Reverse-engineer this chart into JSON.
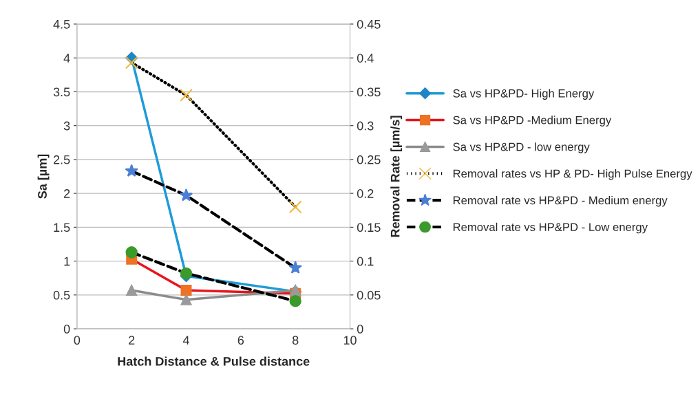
{
  "chart_data": {
    "type": "line",
    "xlabel": "Hatch Distance & Pulse distance",
    "ylabel": "Sa [µm]",
    "y2label": "Removal Rate [µm/s]",
    "x": [
      2,
      4,
      8
    ],
    "xlim": [
      0,
      10
    ],
    "xticks": [
      0,
      2,
      4,
      6,
      8,
      10
    ],
    "ylim": [
      0,
      4.5
    ],
    "yticks": [
      0,
      0.5,
      1,
      1.5,
      2,
      2.5,
      3,
      3.5,
      4,
      4.5
    ],
    "y2lim": [
      0,
      0.45
    ],
    "y2ticks": [
      0,
      0.05,
      0.1,
      0.15,
      0.2,
      0.25,
      0.3,
      0.35,
      0.4,
      0.45
    ],
    "grid": "y",
    "legend": "right",
    "series": [
      {
        "name": "Sa vs HP&PD- High Energy",
        "color": "#1f9bd7",
        "colors": [
          "#1e86c4",
          "#1e86c4",
          "#1e86c4"
        ],
        "marker": "diamond",
        "line_style": "solid",
        "values": [
          4.0,
          0.78,
          0.55
        ]
      },
      {
        "name": "Sa vs HP&PD -Medium Energy",
        "color": "#e8141c",
        "colors": [
          "#ee7124",
          "#ee7124",
          "#ee7124"
        ],
        "marker": "square",
        "line_style": "solid",
        "values": [
          1.03,
          0.57,
          0.52
        ]
      },
      {
        "name": "Sa vs HP&PD - low energy",
        "color": "#8c8c8c",
        "colors": [
          "#9a9a9a",
          "#9a9a9a",
          "#9a9a9a"
        ],
        "marker": "triangle",
        "line_style": "solid",
        "values": [
          0.57,
          0.43,
          0.57
        ]
      },
      {
        "name": "Removal rates vs HP & PD- High Pulse Energy",
        "color": "#000000",
        "colors": [
          "#f5b93a",
          "#f5b93a",
          "#f5b93a"
        ],
        "marker": "cross",
        "line_style": "dotted",
        "axis": "y2",
        "values": [
          0.393,
          0.345,
          0.18
        ]
      },
      {
        "name": "Removal rate vs HP&PD - Medium energy",
        "color": "#000000",
        "colors": [
          "#4a7fd4",
          "#4a7fd4",
          "#4a7fd4"
        ],
        "marker": "star",
        "line_style": "dashed",
        "axis": "y2",
        "values": [
          0.233,
          0.197,
          0.09
        ]
      },
      {
        "name": "Removal rate vs HP&PD - Low energy",
        "color": "#000000",
        "colors": [
          "#3a9a2a",
          "#3a9a2a",
          "#3a9a2a"
        ],
        "marker": "circle",
        "line_style": "dashed",
        "axis": "y2",
        "values": [
          0.113,
          0.082,
          0.041
        ]
      }
    ]
  }
}
